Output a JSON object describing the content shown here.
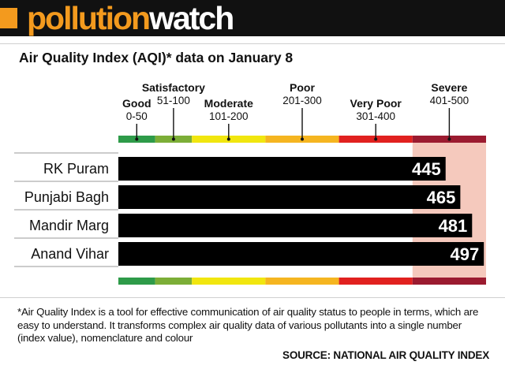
{
  "header": {
    "brand_part1": "pollution",
    "brand_part2": "watch"
  },
  "chart_data": {
    "type": "bar",
    "orientation": "horizontal",
    "title": "Air Quality Index (AQI)* data on January 8",
    "categories": [
      "RK Puram",
      "Punjabi Bagh",
      "Mandir Marg",
      "Anand Vihar"
    ],
    "values": [
      445,
      465,
      481,
      497
    ],
    "xlim": [
      0,
      500
    ],
    "bands": [
      {
        "name": "Good",
        "range": "0-50",
        "from": 0,
        "to": 50,
        "color": "#2e9b49",
        "fill": "#ffffff"
      },
      {
        "name": "Satisfactory",
        "range": "51-100",
        "from": 50,
        "to": 100,
        "color": "#7cae37",
        "fill": "#ffffff"
      },
      {
        "name": "Moderate",
        "range": "101-200",
        "from": 100,
        "to": 200,
        "color": "#f1e60f",
        "fill": "#ffffff"
      },
      {
        "name": "Poor",
        "range": "201-300",
        "from": 200,
        "to": 300,
        "color": "#f5b520",
        "fill": "#ffffff"
      },
      {
        "name": "Very Poor",
        "range": "301-400",
        "from": 300,
        "to": 400,
        "color": "#e1211f",
        "fill": "#ffffff"
      },
      {
        "name": "Severe",
        "range": "401-500",
        "from": 400,
        "to": 500,
        "color": "#9b1b30",
        "fill": "#f5c9bd"
      }
    ],
    "bar_color": "#000000",
    "label_color": "#ffffff"
  },
  "footnote": "*Air Quality Index is a tool for effective communication of air quality status to people in terms, which are easy to understand. It transforms complex air quality data of various pollutants into a single number (index value), nomenclature and colour",
  "source": "SOURCE: NATIONAL AIR QUALITY INDEX"
}
